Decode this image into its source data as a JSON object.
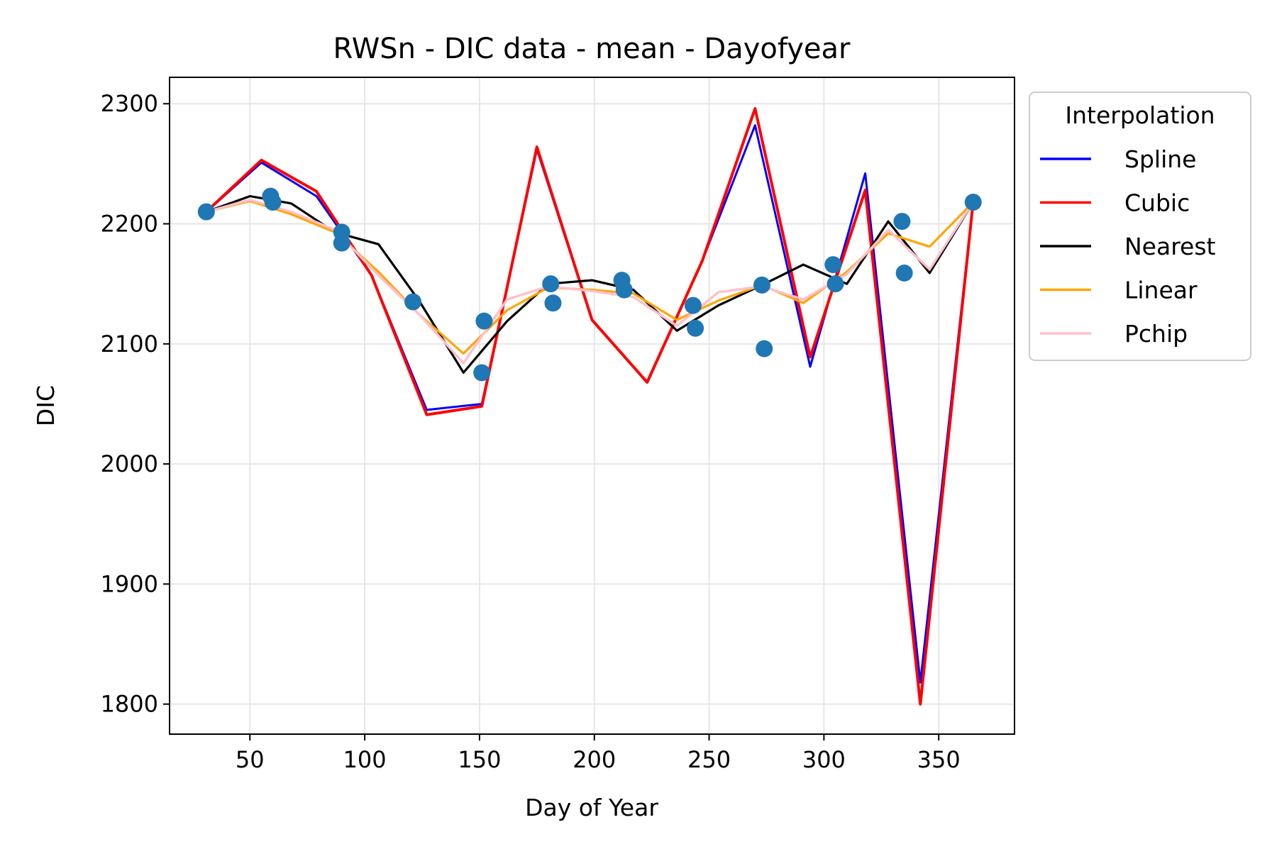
{
  "chart_data": {
    "type": "line",
    "title": "RWSn - DIC data - mean - Dayofyear",
    "xlabel": "Day of Year",
    "ylabel": "DIC",
    "xlim": [
      15,
      383
    ],
    "ylim": [
      1775,
      2322
    ],
    "xticks": [
      50,
      100,
      150,
      200,
      250,
      300,
      350
    ],
    "yticks": [
      1800,
      1900,
      2000,
      2100,
      2200,
      2300
    ],
    "grid": true,
    "legend": {
      "title": "Interpolation",
      "placement": "outside-right-top"
    },
    "scatter": {
      "color": "#1f77b4",
      "points": [
        [
          31,
          2210
        ],
        [
          59,
          2223
        ],
        [
          60,
          2218
        ],
        [
          90,
          2193
        ],
        [
          90,
          2184
        ],
        [
          121,
          2135
        ],
        [
          151,
          2076
        ],
        [
          152,
          2119
        ],
        [
          181,
          2150
        ],
        [
          182,
          2134
        ],
        [
          212,
          2153
        ],
        [
          213,
          2145
        ],
        [
          243,
          2132
        ],
        [
          244,
          2113
        ],
        [
          273,
          2149
        ],
        [
          274,
          2096
        ],
        [
          304,
          2166
        ],
        [
          305,
          2150
        ],
        [
          334,
          2202
        ],
        [
          335,
          2159
        ],
        [
          365,
          2218
        ]
      ]
    },
    "series": [
      {
        "name": "Spline",
        "color": "#0000ff",
        "x": [
          31,
          55,
          79,
          103,
          127,
          151,
          175,
          199,
          223,
          247,
          270,
          294,
          318,
          342,
          365
        ],
        "y": [
          2210,
          2251,
          2223,
          2157,
          2045,
          2050,
          2262,
          2120,
          2068,
          2169,
          2282,
          2081,
          2242,
          1818,
          2218
        ]
      },
      {
        "name": "Cubic",
        "color": "#ff0000",
        "x": [
          31,
          55,
          79,
          103,
          127,
          151,
          175,
          199,
          223,
          247,
          270,
          294,
          318,
          342,
          365
        ],
        "y": [
          2210,
          2253,
          2227,
          2157,
          2041,
          2048,
          2264,
          2120,
          2068,
          2169,
          2296,
          2089,
          2228,
          1800,
          2218
        ]
      },
      {
        "name": "Nearest",
        "color": "#000000",
        "x": [
          31,
          50,
          68,
          87,
          106,
          124,
          143,
          162,
          180,
          199,
          217,
          236,
          254,
          273,
          291,
          310,
          328,
          346,
          365
        ],
        "y": [
          2210,
          2223,
          2217,
          2193,
          2183,
          2135,
          2076,
          2119,
          2150,
          2153,
          2145,
          2111,
          2132,
          2149,
          2166,
          2150,
          2202,
          2159,
          2218
        ]
      },
      {
        "name": "Linear",
        "color": "#ffa500",
        "x": [
          31,
          50,
          68,
          87,
          106,
          124,
          143,
          162,
          180,
          199,
          217,
          236,
          254,
          273,
          291,
          310,
          328,
          346,
          365
        ],
        "y": [
          2210,
          2219,
          2208,
          2193,
          2160,
          2124,
          2092,
          2128,
          2147,
          2145,
          2142,
          2120,
          2136,
          2149,
          2134,
          2160,
          2192,
          2181,
          2218
        ]
      },
      {
        "name": "Pchip",
        "color": "#ffc0cb",
        "x": [
          31,
          50,
          68,
          87,
          106,
          124,
          143,
          162,
          180,
          199,
          217,
          236,
          254,
          273,
          291,
          310,
          328,
          346,
          365
        ],
        "y": [
          2210,
          2220,
          2210,
          2195,
          2157,
          2124,
          2084,
          2137,
          2148,
          2144,
          2139,
          2115,
          2143,
          2148,
          2137,
          2158,
          2195,
          2162,
          2218
        ]
      }
    ]
  }
}
